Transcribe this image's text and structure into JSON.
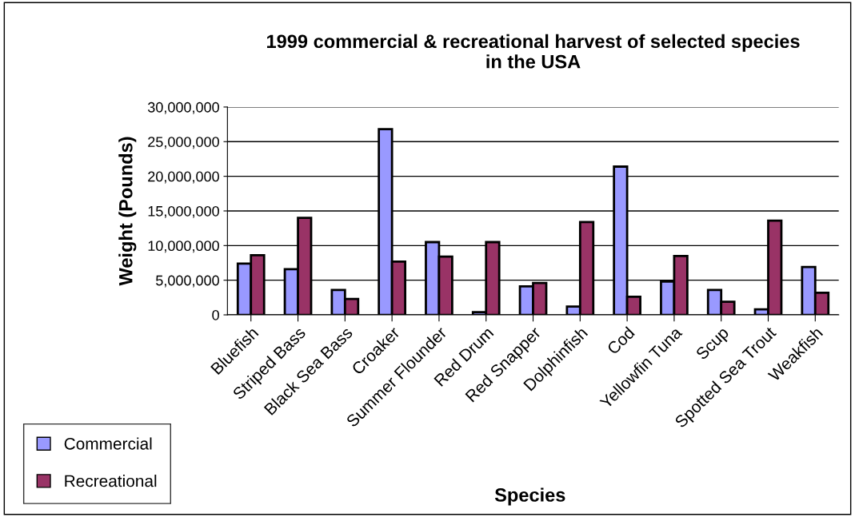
{
  "chart_data": {
    "type": "bar",
    "title": "1999 commercial & recreational harvest of selected species\nin the USA",
    "xlabel": "Species",
    "ylabel": "Weight (Pounds)",
    "categories": [
      "Bluefish",
      "Striped Bass",
      "Black Sea Bass",
      "Croaker",
      "Summer Flounder",
      "Red Drum",
      "Red Snapper",
      "Dolphinfish",
      "Cod",
      "Yellowfin Tuna",
      "Scup",
      "Spotted Sea Trout",
      "Weakfish"
    ],
    "series": [
      {
        "name": "Commercial",
        "color": "#9999ff",
        "values": [
          7400000,
          6600000,
          3600000,
          26800000,
          10500000,
          400000,
          4100000,
          1200000,
          21400000,
          4800000,
          3600000,
          800000,
          6900000
        ]
      },
      {
        "name": "Recreational",
        "color": "#993366",
        "values": [
          8600000,
          14000000,
          2300000,
          7700000,
          8400000,
          10500000,
          4600000,
          13400000,
          2600000,
          8500000,
          1900000,
          13600000,
          3200000
        ]
      }
    ],
    "ylim": [
      0,
      30000000
    ],
    "yticks": [
      {
        "value": 0,
        "label": "0"
      },
      {
        "value": 5000000,
        "label": "5,000,000"
      },
      {
        "value": 10000000,
        "label": "10,000,000"
      },
      {
        "value": 15000000,
        "label": "15,000,000"
      },
      {
        "value": 20000000,
        "label": "20,000,000"
      },
      {
        "value": 25000000,
        "label": "25,000,000"
      },
      {
        "value": 30000000,
        "label": "30,000,000"
      }
    ],
    "grid": "y",
    "legend": "bottom left"
  }
}
